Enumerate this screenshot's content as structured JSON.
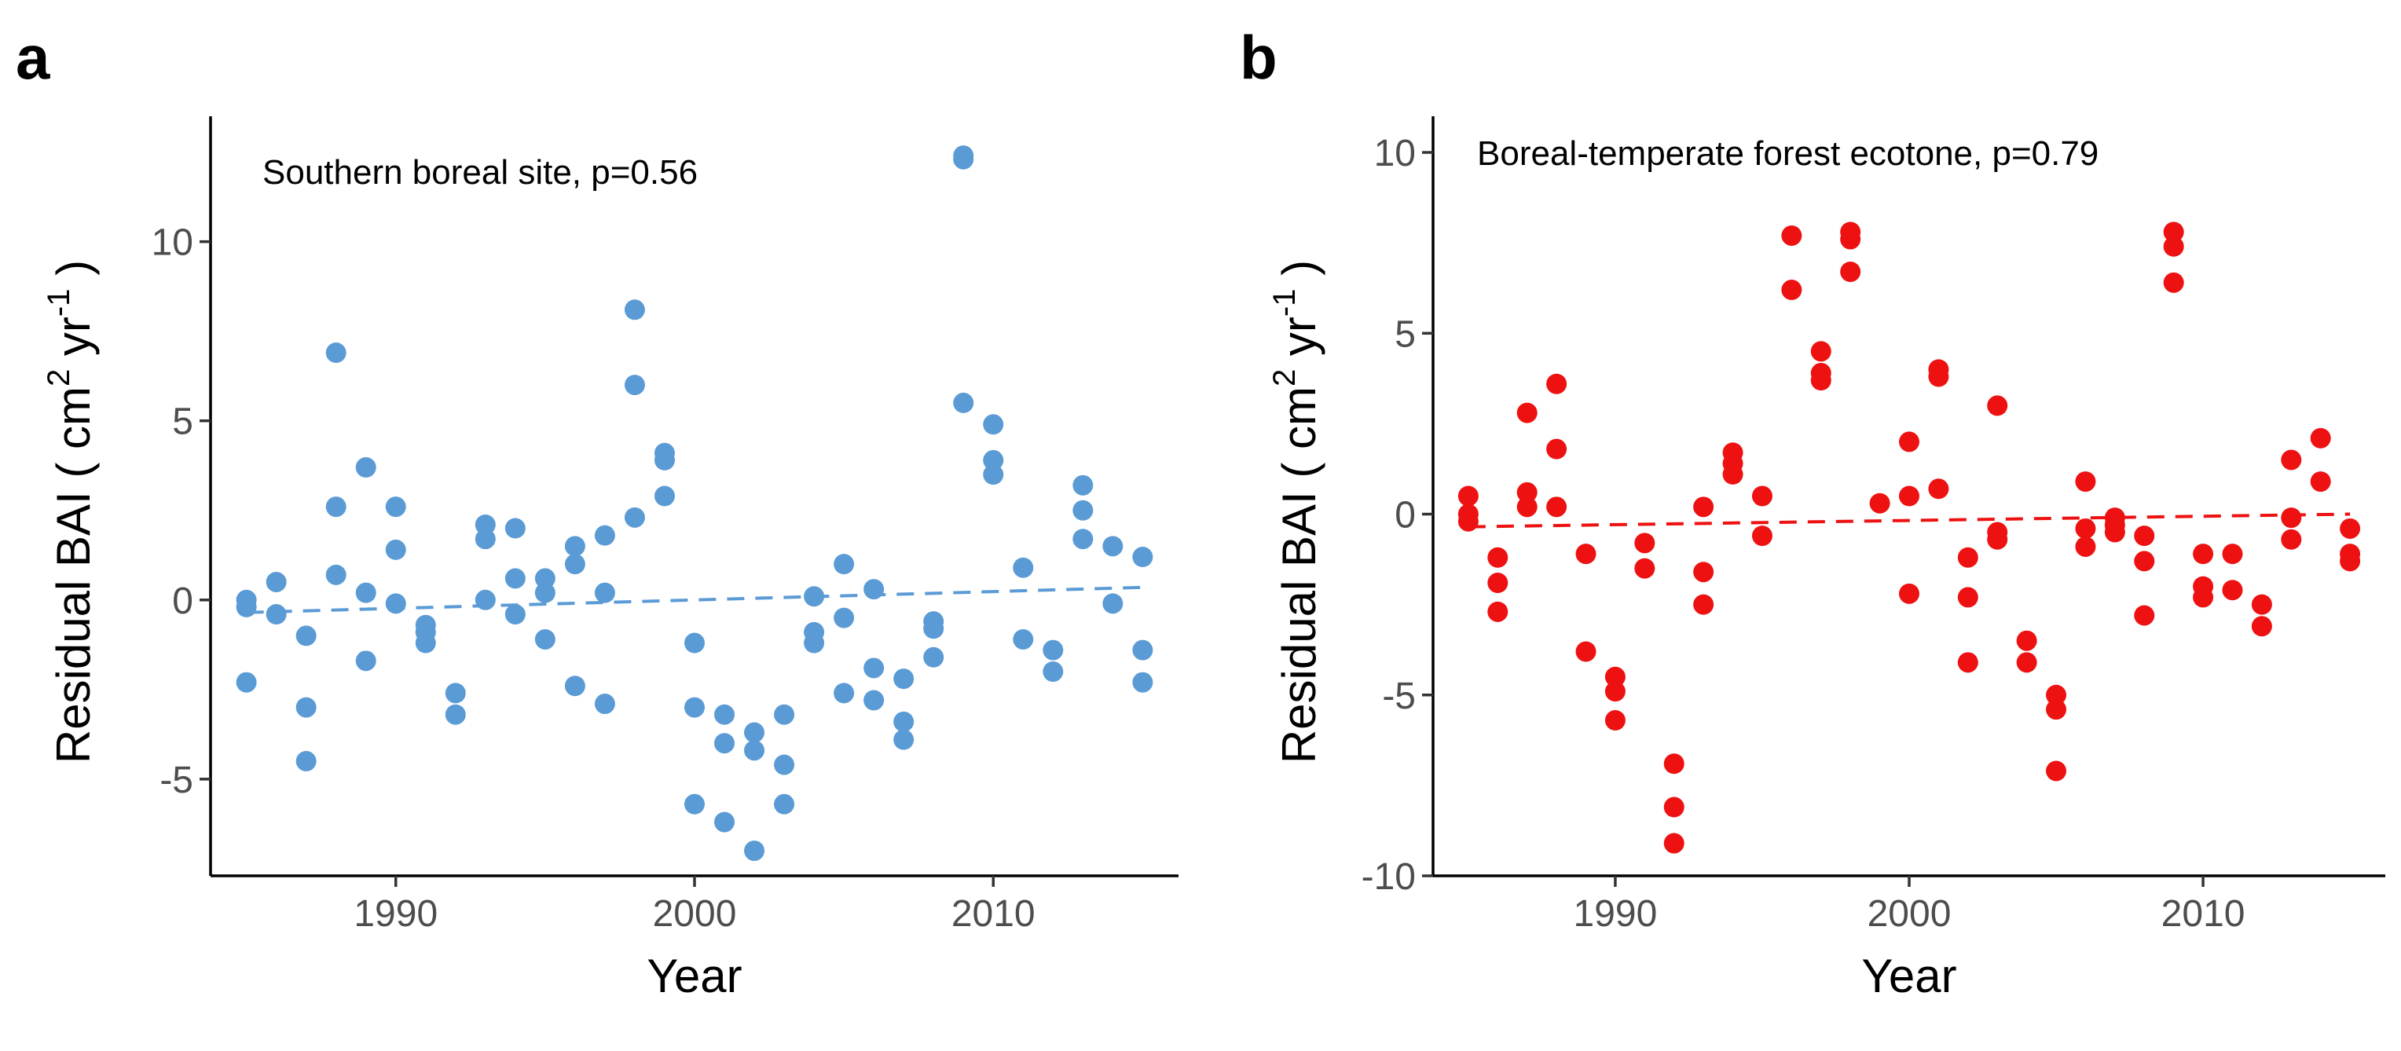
{
  "chart_data": [
    {
      "panel_label": "a",
      "type": "scatter",
      "annotation": "Southern boreal site, p=0.56",
      "xlabel": "Year",
      "ylabel_prefix": "Residual BAI ( cm",
      "ylabel_sup1": "2",
      "ylabel_mid": " yr",
      "ylabel_sup2": "-1",
      "ylabel_suffix": " )",
      "xlim": [
        1983.8,
        2016.2
      ],
      "ylim": [
        -7.7,
        13.5
      ],
      "xticks": [
        1990,
        2000,
        2010
      ],
      "xtick_labels": [
        "1990",
        "2000",
        "2010"
      ],
      "yticks": [
        -5,
        0,
        5,
        10
      ],
      "ytick_labels": [
        "-5",
        "0",
        "5",
        "10"
      ],
      "color": "#5b9bd5",
      "trend": {
        "x": [
          1985,
          2015
        ],
        "y": [
          -0.35,
          0.35
        ]
      },
      "points": [
        [
          1985,
          0.0
        ],
        [
          1985,
          -0.2
        ],
        [
          1985,
          -2.3
        ],
        [
          1986,
          0.5
        ],
        [
          1986,
          -0.4
        ],
        [
          1987,
          -1.0
        ],
        [
          1987,
          -3.0
        ],
        [
          1987,
          -4.5
        ],
        [
          1988,
          6.9
        ],
        [
          1988,
          2.6
        ],
        [
          1988,
          0.7
        ],
        [
          1989,
          3.7
        ],
        [
          1989,
          0.2
        ],
        [
          1989,
          -1.7
        ],
        [
          1990,
          2.6
        ],
        [
          1990,
          1.4
        ],
        [
          1990,
          -0.1
        ],
        [
          1991,
          -0.7
        ],
        [
          1991,
          -0.9
        ],
        [
          1991,
          -1.2
        ],
        [
          1992,
          -2.6
        ],
        [
          1992,
          -3.2
        ],
        [
          1993,
          2.1
        ],
        [
          1993,
          1.7
        ],
        [
          1993,
          0.0
        ],
        [
          1994,
          2.0
        ],
        [
          1994,
          0.6
        ],
        [
          1994,
          -0.4
        ],
        [
          1995,
          0.6
        ],
        [
          1995,
          0.2
        ],
        [
          1995,
          -1.1
        ],
        [
          1996,
          1.5
        ],
        [
          1996,
          1.0
        ],
        [
          1996,
          -2.4
        ],
        [
          1997,
          1.8
        ],
        [
          1997,
          0.2
        ],
        [
          1997,
          -2.9
        ],
        [
          1998,
          8.1
        ],
        [
          1998,
          6.0
        ],
        [
          1998,
          2.3
        ],
        [
          1999,
          4.1
        ],
        [
          1999,
          3.9
        ],
        [
          1999,
          2.9
        ],
        [
          2000,
          -1.2
        ],
        [
          2000,
          -3.0
        ],
        [
          2000,
          -5.7
        ],
        [
          2001,
          -3.2
        ],
        [
          2001,
          -4.0
        ],
        [
          2001,
          -6.2
        ],
        [
          2002,
          -3.7
        ],
        [
          2002,
          -4.2
        ],
        [
          2002,
          -7.0
        ],
        [
          2003,
          -3.2
        ],
        [
          2003,
          -4.6
        ],
        [
          2003,
          -5.7
        ],
        [
          2004,
          0.1
        ],
        [
          2004,
          -0.9
        ],
        [
          2004,
          -1.2
        ],
        [
          2005,
          1.0
        ],
        [
          2005,
          -0.5
        ],
        [
          2005,
          -2.6
        ],
        [
          2006,
          0.3
        ],
        [
          2006,
          -1.9
        ],
        [
          2006,
          -2.8
        ],
        [
          2007,
          -2.2
        ],
        [
          2007,
          -3.4
        ],
        [
          2007,
          -3.9
        ],
        [
          2008,
          -0.6
        ],
        [
          2008,
          -0.8
        ],
        [
          2008,
          -1.6
        ],
        [
          2009,
          12.4
        ],
        [
          2009,
          12.3
        ],
        [
          2009,
          5.5
        ],
        [
          2010,
          4.9
        ],
        [
          2010,
          3.9
        ],
        [
          2010,
          3.5
        ],
        [
          2011,
          0.9
        ],
        [
          2011,
          -1.1
        ],
        [
          2012,
          -1.4
        ],
        [
          2012,
          -2.0
        ],
        [
          2013,
          3.2
        ],
        [
          2013,
          2.5
        ],
        [
          2013,
          1.7
        ],
        [
          2014,
          1.5
        ],
        [
          2014,
          -0.1
        ],
        [
          2015,
          1.2
        ],
        [
          2015,
          -1.4
        ],
        [
          2015,
          -2.3
        ]
      ]
    },
    {
      "panel_label": "b",
      "type": "scatter",
      "annotation": "Boreal-temperate forest ecotone, p=0.79",
      "xlabel": "Year",
      "ylabel_prefix": "Residual BAI ( cm",
      "ylabel_sup1": "2",
      "ylabel_mid": " yr",
      "ylabel_sup2": "-1",
      "ylabel_suffix": " )",
      "xlim": [
        1983.8,
        2016.2
      ],
      "ylim": [
        -10,
        11
      ],
      "xticks": [
        1990,
        2000,
        2010
      ],
      "xtick_labels": [
        "1990",
        "2000",
        "2010"
      ],
      "yticks": [
        -10,
        -5,
        0,
        5,
        10
      ],
      "ytick_labels": [
        "-10",
        "-5",
        "0",
        "5",
        "10"
      ],
      "color": "#ee1111",
      "trend": {
        "x": [
          1985,
          2015
        ],
        "y": [
          -0.35,
          0.0
        ]
      },
      "points": [
        [
          1985,
          0.5
        ],
        [
          1985,
          0.0
        ],
        [
          1985,
          -0.2
        ],
        [
          1986,
          -1.2
        ],
        [
          1986,
          -1.9
        ],
        [
          1986,
          -2.7
        ],
        [
          1987,
          2.8
        ],
        [
          1987,
          0.6
        ],
        [
          1987,
          0.2
        ],
        [
          1988,
          3.6
        ],
        [
          1988,
          1.8
        ],
        [
          1988,
          0.2
        ],
        [
          1989,
          -1.1
        ],
        [
          1989,
          -3.8
        ],
        [
          1990,
          -4.5
        ],
        [
          1990,
          -4.9
        ],
        [
          1990,
          -5.7
        ],
        [
          1991,
          -0.8
        ],
        [
          1991,
          -1.5
        ],
        [
          1992,
          -6.9
        ],
        [
          1992,
          -8.1
        ],
        [
          1992,
          -9.1
        ],
        [
          1993,
          0.2
        ],
        [
          1993,
          -1.6
        ],
        [
          1993,
          -2.5
        ],
        [
          1994,
          1.7
        ],
        [
          1994,
          1.4
        ],
        [
          1994,
          1.1
        ],
        [
          1995,
          0.5
        ],
        [
          1995,
          -0.6
        ],
        [
          1996,
          7.7
        ],
        [
          1996,
          6.2
        ],
        [
          1997,
          4.5
        ],
        [
          1997,
          3.9
        ],
        [
          1997,
          3.7
        ],
        [
          1998,
          7.8
        ],
        [
          1998,
          7.6
        ],
        [
          1998,
          6.7
        ],
        [
          1999,
          0.3
        ],
        [
          2000,
          2.0
        ],
        [
          2000,
          0.5
        ],
        [
          2000,
          -2.2
        ],
        [
          2001,
          4.0
        ],
        [
          2001,
          3.8
        ],
        [
          2001,
          0.7
        ],
        [
          2002,
          -1.2
        ],
        [
          2002,
          -2.3
        ],
        [
          2002,
          -4.1
        ],
        [
          2003,
          3.0
        ],
        [
          2003,
          -0.5
        ],
        [
          2003,
          -0.7
        ],
        [
          2004,
          -3.5
        ],
        [
          2004,
          -4.1
        ],
        [
          2005,
          -5.0
        ],
        [
          2005,
          -5.4
        ],
        [
          2005,
          -7.1
        ],
        [
          2006,
          0.9
        ],
        [
          2006,
          -0.4
        ],
        [
          2006,
          -0.9
        ],
        [
          2007,
          -0.1
        ],
        [
          2007,
          -0.3
        ],
        [
          2007,
          -0.5
        ],
        [
          2008,
          -0.6
        ],
        [
          2008,
          -1.3
        ],
        [
          2008,
          -2.8
        ],
        [
          2009,
          7.8
        ],
        [
          2009,
          7.4
        ],
        [
          2009,
          6.4
        ],
        [
          2010,
          -1.1
        ],
        [
          2010,
          -2.0
        ],
        [
          2010,
          -2.3
        ],
        [
          2011,
          -1.1
        ],
        [
          2011,
          -2.1
        ],
        [
          2012,
          -2.5
        ],
        [
          2012,
          -3.1
        ],
        [
          2013,
          1.5
        ],
        [
          2013,
          -0.1
        ],
        [
          2013,
          -0.7
        ],
        [
          2014,
          2.1
        ],
        [
          2014,
          0.9
        ],
        [
          2015,
          -0.4
        ],
        [
          2015,
          -1.1
        ],
        [
          2015,
          -1.3
        ]
      ]
    }
  ]
}
